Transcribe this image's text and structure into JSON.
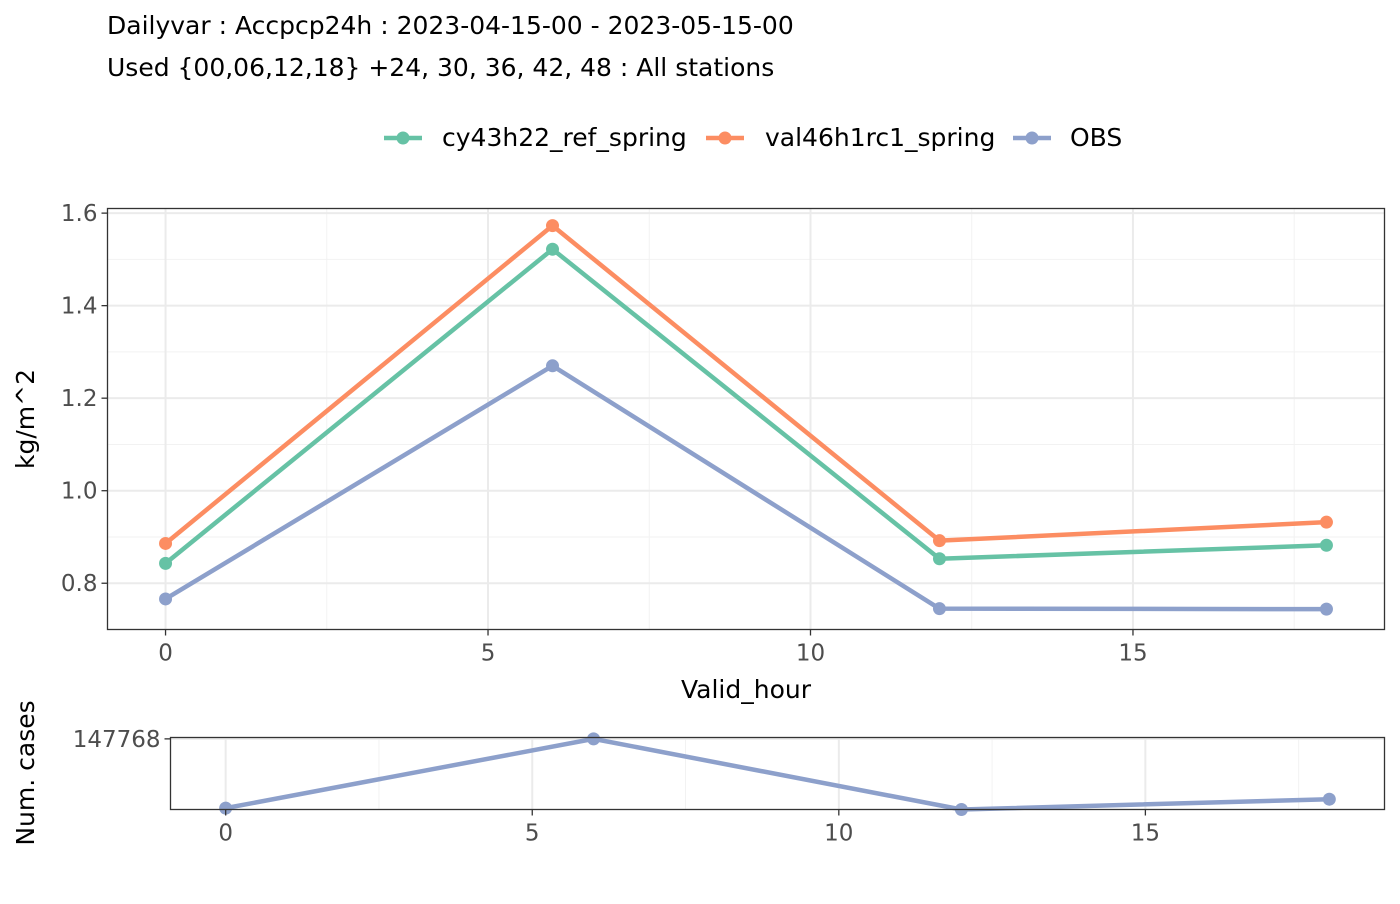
{
  "chart_data": [
    {
      "type": "line",
      "title_lines": [
        "Dailyvar : Accpcp24h : 2023-04-15-00 - 2023-05-15-00",
        "Used {00,06,12,18} +24, 30, 36, 42, 48 : All stations"
      ],
      "xlabel": "Valid_hour",
      "ylabel": "kg/m^2",
      "xlim": [
        -0.9,
        18.9
      ],
      "ylim": [
        0.7,
        1.61
      ],
      "xticks": [
        0,
        5,
        10,
        15
      ],
      "xtick_labels": [
        "0",
        "5",
        "10",
        "15"
      ],
      "yticks": [
        0.8,
        1.0,
        1.2,
        1.4,
        1.6
      ],
      "ytick_labels": [
        "0.8",
        "1.0",
        "1.2",
        "1.4",
        "1.6"
      ],
      "grid": true,
      "legend_position": "top",
      "x": [
        0,
        6,
        12,
        18
      ],
      "series": [
        {
          "name": "cy43h22_ref_spring",
          "color": "#66c2a5",
          "values": [
            0.843,
            1.522,
            0.853,
            0.882
          ]
        },
        {
          "name": "val46h1rc1_spring",
          "color": "#fc8d62",
          "values": [
            0.886,
            1.573,
            0.892,
            0.932
          ]
        },
        {
          "name": "OBS",
          "color": "#8da0cb",
          "values": [
            0.766,
            1.27,
            0.745,
            0.744
          ]
        }
      ]
    },
    {
      "type": "line",
      "xlabel": "",
      "ylabel": "Num. cases",
      "xlim": [
        -0.9,
        18.9
      ],
      "ylim": [
        147665,
        147770
      ],
      "xticks": [
        0,
        5,
        10,
        15
      ],
      "xtick_labels": [
        "0",
        "5",
        "10",
        "15"
      ],
      "yticks": [
        147768
      ],
      "ytick_labels": [
        "147768"
      ],
      "grid": true,
      "x": [
        0,
        6,
        12,
        18
      ],
      "series": [
        {
          "color": "#8da0cb",
          "values": [
            147667,
            147768,
            147665,
            147680
          ]
        }
      ]
    }
  ]
}
